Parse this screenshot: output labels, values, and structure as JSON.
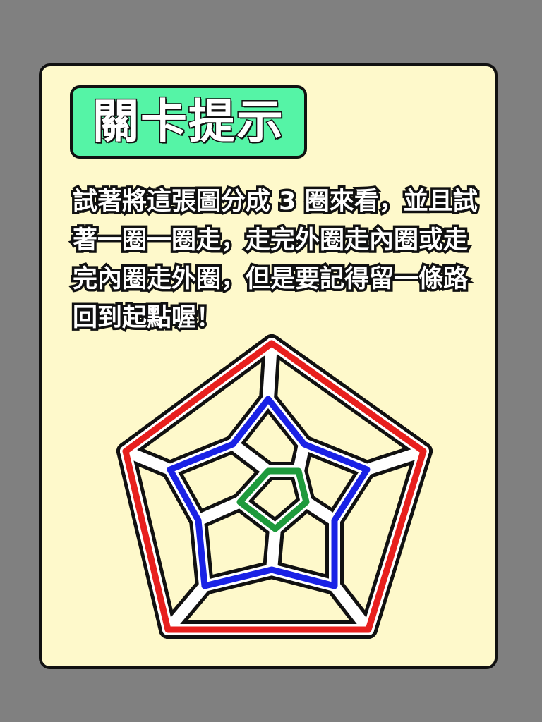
{
  "hint_card": {
    "title": "關卡提示",
    "body": "試著將這張圖分成 3 圈來看，並且試著一圈一圈走，走完外圈走內圈或走完內圈走外圈，但是要記得留一條路回到起點喔！"
  },
  "diagram": {
    "rings": [
      {
        "ring": "outer",
        "color": "#e8201e"
      },
      {
        "ring": "middle",
        "color": "#1a22e6"
      },
      {
        "ring": "inner",
        "color": "#1e9a3c"
      }
    ],
    "path_color": "#ffffff",
    "outline_color": "#111111"
  }
}
